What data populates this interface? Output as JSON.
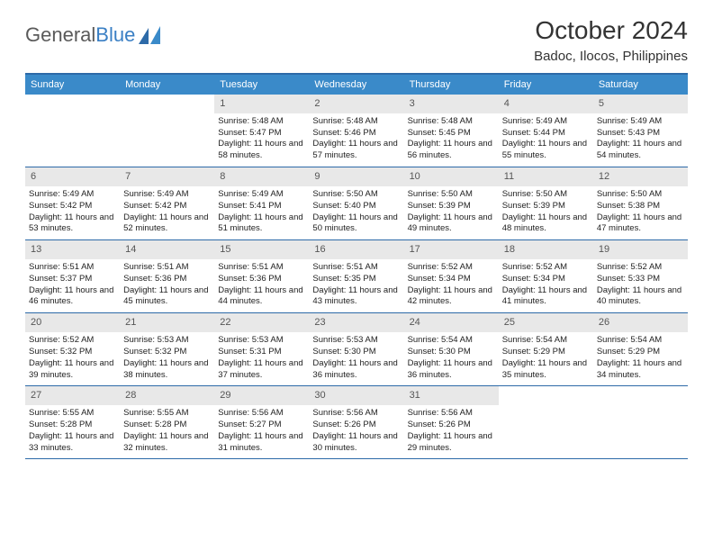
{
  "logo": {
    "text1": "General",
    "text2": "Blue"
  },
  "title": "October 2024",
  "location": "Badoc, Ilocos, Philippines",
  "colors": {
    "header_bg": "#3a8ac9",
    "header_text": "#ffffff",
    "border": "#2d6aa8",
    "daynum_bg": "#e8e8e8",
    "logo_gray": "#5a5a5a",
    "logo_blue": "#3a7fc4"
  },
  "weekdays": [
    "Sunday",
    "Monday",
    "Tuesday",
    "Wednesday",
    "Thursday",
    "Friday",
    "Saturday"
  ],
  "weeks": [
    [
      {
        "empty": true
      },
      {
        "empty": true
      },
      {
        "num": "1",
        "sunrise": "Sunrise: 5:48 AM",
        "sunset": "Sunset: 5:47 PM",
        "daylight": "Daylight: 11 hours and 58 minutes."
      },
      {
        "num": "2",
        "sunrise": "Sunrise: 5:48 AM",
        "sunset": "Sunset: 5:46 PM",
        "daylight": "Daylight: 11 hours and 57 minutes."
      },
      {
        "num": "3",
        "sunrise": "Sunrise: 5:48 AM",
        "sunset": "Sunset: 5:45 PM",
        "daylight": "Daylight: 11 hours and 56 minutes."
      },
      {
        "num": "4",
        "sunrise": "Sunrise: 5:49 AM",
        "sunset": "Sunset: 5:44 PM",
        "daylight": "Daylight: 11 hours and 55 minutes."
      },
      {
        "num": "5",
        "sunrise": "Sunrise: 5:49 AM",
        "sunset": "Sunset: 5:43 PM",
        "daylight": "Daylight: 11 hours and 54 minutes."
      }
    ],
    [
      {
        "num": "6",
        "sunrise": "Sunrise: 5:49 AM",
        "sunset": "Sunset: 5:42 PM",
        "daylight": "Daylight: 11 hours and 53 minutes."
      },
      {
        "num": "7",
        "sunrise": "Sunrise: 5:49 AM",
        "sunset": "Sunset: 5:42 PM",
        "daylight": "Daylight: 11 hours and 52 minutes."
      },
      {
        "num": "8",
        "sunrise": "Sunrise: 5:49 AM",
        "sunset": "Sunset: 5:41 PM",
        "daylight": "Daylight: 11 hours and 51 minutes."
      },
      {
        "num": "9",
        "sunrise": "Sunrise: 5:50 AM",
        "sunset": "Sunset: 5:40 PM",
        "daylight": "Daylight: 11 hours and 50 minutes."
      },
      {
        "num": "10",
        "sunrise": "Sunrise: 5:50 AM",
        "sunset": "Sunset: 5:39 PM",
        "daylight": "Daylight: 11 hours and 49 minutes."
      },
      {
        "num": "11",
        "sunrise": "Sunrise: 5:50 AM",
        "sunset": "Sunset: 5:39 PM",
        "daylight": "Daylight: 11 hours and 48 minutes."
      },
      {
        "num": "12",
        "sunrise": "Sunrise: 5:50 AM",
        "sunset": "Sunset: 5:38 PM",
        "daylight": "Daylight: 11 hours and 47 minutes."
      }
    ],
    [
      {
        "num": "13",
        "sunrise": "Sunrise: 5:51 AM",
        "sunset": "Sunset: 5:37 PM",
        "daylight": "Daylight: 11 hours and 46 minutes."
      },
      {
        "num": "14",
        "sunrise": "Sunrise: 5:51 AM",
        "sunset": "Sunset: 5:36 PM",
        "daylight": "Daylight: 11 hours and 45 minutes."
      },
      {
        "num": "15",
        "sunrise": "Sunrise: 5:51 AM",
        "sunset": "Sunset: 5:36 PM",
        "daylight": "Daylight: 11 hours and 44 minutes."
      },
      {
        "num": "16",
        "sunrise": "Sunrise: 5:51 AM",
        "sunset": "Sunset: 5:35 PM",
        "daylight": "Daylight: 11 hours and 43 minutes."
      },
      {
        "num": "17",
        "sunrise": "Sunrise: 5:52 AM",
        "sunset": "Sunset: 5:34 PM",
        "daylight": "Daylight: 11 hours and 42 minutes."
      },
      {
        "num": "18",
        "sunrise": "Sunrise: 5:52 AM",
        "sunset": "Sunset: 5:34 PM",
        "daylight": "Daylight: 11 hours and 41 minutes."
      },
      {
        "num": "19",
        "sunrise": "Sunrise: 5:52 AM",
        "sunset": "Sunset: 5:33 PM",
        "daylight": "Daylight: 11 hours and 40 minutes."
      }
    ],
    [
      {
        "num": "20",
        "sunrise": "Sunrise: 5:52 AM",
        "sunset": "Sunset: 5:32 PM",
        "daylight": "Daylight: 11 hours and 39 minutes."
      },
      {
        "num": "21",
        "sunrise": "Sunrise: 5:53 AM",
        "sunset": "Sunset: 5:32 PM",
        "daylight": "Daylight: 11 hours and 38 minutes."
      },
      {
        "num": "22",
        "sunrise": "Sunrise: 5:53 AM",
        "sunset": "Sunset: 5:31 PM",
        "daylight": "Daylight: 11 hours and 37 minutes."
      },
      {
        "num": "23",
        "sunrise": "Sunrise: 5:53 AM",
        "sunset": "Sunset: 5:30 PM",
        "daylight": "Daylight: 11 hours and 36 minutes."
      },
      {
        "num": "24",
        "sunrise": "Sunrise: 5:54 AM",
        "sunset": "Sunset: 5:30 PM",
        "daylight": "Daylight: 11 hours and 36 minutes."
      },
      {
        "num": "25",
        "sunrise": "Sunrise: 5:54 AM",
        "sunset": "Sunset: 5:29 PM",
        "daylight": "Daylight: 11 hours and 35 minutes."
      },
      {
        "num": "26",
        "sunrise": "Sunrise: 5:54 AM",
        "sunset": "Sunset: 5:29 PM",
        "daylight": "Daylight: 11 hours and 34 minutes."
      }
    ],
    [
      {
        "num": "27",
        "sunrise": "Sunrise: 5:55 AM",
        "sunset": "Sunset: 5:28 PM",
        "daylight": "Daylight: 11 hours and 33 minutes."
      },
      {
        "num": "28",
        "sunrise": "Sunrise: 5:55 AM",
        "sunset": "Sunset: 5:28 PM",
        "daylight": "Daylight: 11 hours and 32 minutes."
      },
      {
        "num": "29",
        "sunrise": "Sunrise: 5:56 AM",
        "sunset": "Sunset: 5:27 PM",
        "daylight": "Daylight: 11 hours and 31 minutes."
      },
      {
        "num": "30",
        "sunrise": "Sunrise: 5:56 AM",
        "sunset": "Sunset: 5:26 PM",
        "daylight": "Daylight: 11 hours and 30 minutes."
      },
      {
        "num": "31",
        "sunrise": "Sunrise: 5:56 AM",
        "sunset": "Sunset: 5:26 PM",
        "daylight": "Daylight: 11 hours and 29 minutes."
      },
      {
        "empty": true
      },
      {
        "empty": true
      }
    ]
  ]
}
